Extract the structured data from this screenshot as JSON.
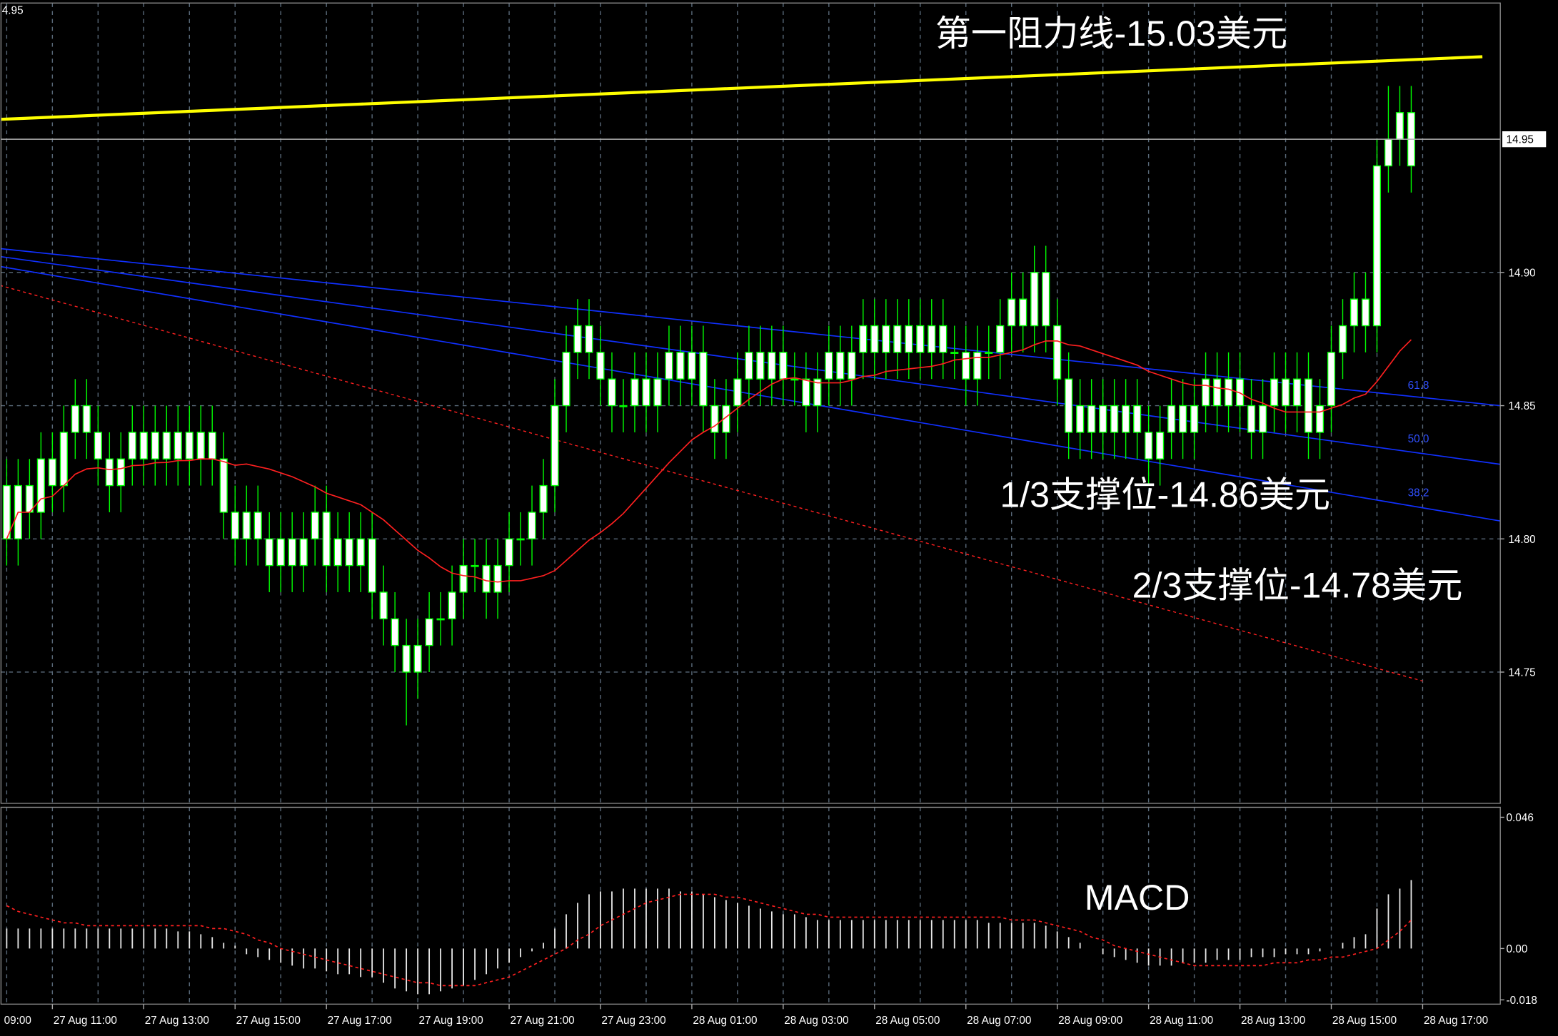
{
  "chart_data": {
    "type": "candlestick",
    "corner_label": "4.95",
    "annotations": [
      "第一阻力线-15.03美元",
      "1/3支撑位-14.86美元",
      "2/3支撑位-14.78美元"
    ],
    "fib_labels": [
      "61.8",
      "50.0",
      "38.2"
    ],
    "price_label": {
      "value": 14.95,
      "label": "14.95"
    },
    "body_color": "#ffffff",
    "wick_color": "#00ff00",
    "grid": true,
    "xlim": [
      -0.5,
      130.8
    ],
    "xticks": [
      {
        "value": -4,
        "label": "09:00"
      },
      {
        "value": 4,
        "label": "27 Aug 11:00"
      },
      {
        "value": 12,
        "label": "27 Aug 13:00"
      },
      {
        "value": 20,
        "label": "27 Aug 15:00"
      },
      {
        "value": 28,
        "label": "27 Aug 17:00"
      },
      {
        "value": 36,
        "label": "27 Aug 19:00"
      },
      {
        "value": 44,
        "label": "27 Aug 21:00"
      },
      {
        "value": 52,
        "label": "27 Aug 23:00"
      },
      {
        "value": 60,
        "label": "28 Aug 01:00"
      },
      {
        "value": 68,
        "label": "28 Aug 03:00"
      },
      {
        "value": 76,
        "label": "28 Aug 05:00"
      },
      {
        "value": 84,
        "label": "28 Aug 07:00"
      },
      {
        "value": 92,
        "label": "28 Aug 09:00"
      },
      {
        "value": 100,
        "label": "28 Aug 11:00"
      },
      {
        "value": 108,
        "label": "28 Aug 13:00"
      },
      {
        "value": 116,
        "label": "28 Aug 15:00"
      },
      {
        "value": 124,
        "label": "28 Aug 17:00"
      }
    ],
    "ylim": [
      14.7,
      15.0
    ],
    "yticks": [
      {
        "value": 14.9,
        "label": "14.90"
      },
      14.85,
      {
        "value": 14.8,
        "label": "14.80"
      },
      14.75
    ],
    "open": [
      14.82,
      14.8,
      14.82,
      14.81,
      14.83,
      14.82,
      14.84,
      14.85,
      14.84,
      14.83,
      14.82,
      14.83,
      14.84,
      14.83,
      14.84,
      14.83,
      14.84,
      14.83,
      14.84,
      14.83,
      14.81,
      14.8,
      14.81,
      14.8,
      14.79,
      14.8,
      14.79,
      14.8,
      14.81,
      14.79,
      14.8,
      14.79,
      14.8,
      14.78,
      14.77,
      14.76,
      14.75,
      14.76,
      14.77,
      14.77,
      14.78,
      14.79,
      14.79,
      14.78,
      14.79,
      14.8,
      14.8,
      14.81,
      14.82,
      14.85,
      14.87,
      14.88,
      14.87,
      14.86,
      14.85,
      14.85,
      14.86,
      14.85,
      14.86,
      14.87,
      14.86,
      14.87,
      14.85,
      14.84,
      14.85,
      14.86,
      14.87,
      14.86,
      14.87,
      14.86,
      14.86,
      14.85,
      14.86,
      14.87,
      14.86,
      14.87,
      14.88,
      14.87,
      14.88,
      14.87,
      14.88,
      14.87,
      14.88,
      14.87,
      14.87,
      14.86,
      14.87,
      14.87,
      14.88,
      14.89,
      14.88,
      14.9,
      14.88,
      14.86,
      14.84,
      14.85,
      14.84,
      14.85,
      14.84,
      14.85,
      14.84,
      14.83,
      14.84,
      14.85,
      14.84,
      14.85,
      14.86,
      14.85,
      14.86,
      14.85,
      14.84,
      14.85,
      14.86,
      14.85,
      14.86,
      14.84,
      14.85,
      14.87,
      14.88,
      14.89,
      14.88,
      14.94,
      14.95,
      14.96
    ],
    "high": [
      14.83,
      14.83,
      14.83,
      14.84,
      14.84,
      14.85,
      14.86,
      14.86,
      14.85,
      14.84,
      14.84,
      14.85,
      14.85,
      14.85,
      14.85,
      14.85,
      14.85,
      14.85,
      14.85,
      14.84,
      14.82,
      14.82,
      14.82,
      14.81,
      14.81,
      14.81,
      14.81,
      14.82,
      14.82,
      14.81,
      14.81,
      14.81,
      14.81,
      14.79,
      14.78,
      14.77,
      14.77,
      14.78,
      14.78,
      14.79,
      14.8,
      14.8,
      14.8,
      14.8,
      14.81,
      14.81,
      14.82,
      14.83,
      14.86,
      14.88,
      14.89,
      14.89,
      14.88,
      14.87,
      14.86,
      14.87,
      14.87,
      14.87,
      14.88,
      14.88,
      14.88,
      14.88,
      14.86,
      14.86,
      14.87,
      14.88,
      14.88,
      14.88,
      14.88,
      14.87,
      14.87,
      14.87,
      14.88,
      14.88,
      14.88,
      14.89,
      14.89,
      14.89,
      14.89,
      14.89,
      14.89,
      14.89,
      14.89,
      14.88,
      14.88,
      14.88,
      14.88,
      14.89,
      14.9,
      14.9,
      14.91,
      14.91,
      14.89,
      14.87,
      14.86,
      14.86,
      14.86,
      14.86,
      14.86,
      14.86,
      14.85,
      14.85,
      14.86,
      14.86,
      14.86,
      14.87,
      14.87,
      14.87,
      14.87,
      14.86,
      14.86,
      14.87,
      14.87,
      14.87,
      14.87,
      14.86,
      14.88,
      14.89,
      14.9,
      14.9,
      14.95,
      14.97,
      14.97,
      14.97
    ],
    "low": [
      14.79,
      14.79,
      14.8,
      14.8,
      14.81,
      14.81,
      14.83,
      14.83,
      14.82,
      14.81,
      14.81,
      14.82,
      14.82,
      14.82,
      14.82,
      14.82,
      14.82,
      14.82,
      14.82,
      14.8,
      14.79,
      14.79,
      14.79,
      14.78,
      14.78,
      14.78,
      14.78,
      14.79,
      14.78,
      14.78,
      14.78,
      14.78,
      14.77,
      14.76,
      14.75,
      14.73,
      14.74,
      14.75,
      14.76,
      14.76,
      14.77,
      14.78,
      14.77,
      14.77,
      14.78,
      14.79,
      14.79,
      14.8,
      14.81,
      14.84,
      14.86,
      14.86,
      14.85,
      14.84,
      14.84,
      14.84,
      14.84,
      14.84,
      14.85,
      14.85,
      14.85,
      14.84,
      14.83,
      14.83,
      14.84,
      14.85,
      14.85,
      14.85,
      14.85,
      14.85,
      14.84,
      14.84,
      14.85,
      14.85,
      14.85,
      14.86,
      14.86,
      14.86,
      14.86,
      14.86,
      14.86,
      14.86,
      14.86,
      14.86,
      14.85,
      14.85,
      14.86,
      14.86,
      14.87,
      14.87,
      14.87,
      14.87,
      14.85,
      14.83,
      14.83,
      14.83,
      14.83,
      14.83,
      14.83,
      14.83,
      14.82,
      14.82,
      14.83,
      14.83,
      14.83,
      14.84,
      14.84,
      14.84,
      14.84,
      14.83,
      14.83,
      14.84,
      14.84,
      14.84,
      14.83,
      14.83,
      14.84,
      14.86,
      14.87,
      14.87,
      14.87,
      14.93,
      14.94,
      14.93
    ],
    "close": [
      14.8,
      14.82,
      14.81,
      14.83,
      14.82,
      14.84,
      14.85,
      14.84,
      14.83,
      14.82,
      14.83,
      14.84,
      14.83,
      14.84,
      14.83,
      14.84,
      14.83,
      14.84,
      14.83,
      14.81,
      14.8,
      14.81,
      14.8,
      14.79,
      14.8,
      14.79,
      14.8,
      14.81,
      14.79,
      14.8,
      14.79,
      14.8,
      14.78,
      14.77,
      14.76,
      14.75,
      14.76,
      14.77,
      14.77,
      14.78,
      14.79,
      14.79,
      14.78,
      14.79,
      14.8,
      14.8,
      14.81,
      14.82,
      14.85,
      14.87,
      14.88,
      14.87,
      14.86,
      14.85,
      14.85,
      14.86,
      14.85,
      14.86,
      14.87,
      14.86,
      14.87,
      14.85,
      14.84,
      14.85,
      14.86,
      14.87,
      14.86,
      14.87,
      14.86,
      14.86,
      14.85,
      14.86,
      14.87,
      14.86,
      14.87,
      14.88,
      14.87,
      14.88,
      14.87,
      14.88,
      14.87,
      14.88,
      14.87,
      14.87,
      14.86,
      14.87,
      14.87,
      14.88,
      14.89,
      14.88,
      14.9,
      14.88,
      14.86,
      14.84,
      14.85,
      14.84,
      14.85,
      14.84,
      14.85,
      14.84,
      14.83,
      14.84,
      14.85,
      14.84,
      14.85,
      14.86,
      14.85,
      14.86,
      14.85,
      14.84,
      14.85,
      14.86,
      14.85,
      14.86,
      14.84,
      14.85,
      14.87,
      14.88,
      14.89,
      14.88,
      14.94,
      14.95,
      14.96,
      14.94
    ],
    "macd": {
      "title": "MACD",
      "ylim": [
        -0.0195,
        0.0495
      ],
      "yticks": [
        0.046,
        {
          "value": 0,
          "label": "0.00"
        },
        -0.018
      ],
      "values": [
        0.007,
        0.007,
        0.007,
        0.007,
        0.007,
        0.007,
        0.007,
        0.007,
        0.007,
        0.007,
        0.007,
        0.007,
        0.007,
        0.007,
        0.007,
        0.006,
        0.006,
        0.005,
        0.004,
        0.002,
        0.001,
        -0.002,
        -0.003,
        -0.004,
        -0.005,
        -0.006,
        -0.007,
        -0.007,
        -0.008,
        -0.009,
        -0.009,
        -0.01,
        -0.01,
        -0.012,
        -0.014,
        -0.015,
        -0.016,
        -0.016,
        -0.015,
        -0.014,
        -0.013,
        -0.011,
        -0.009,
        -0.007,
        -0.005,
        -0.003,
        -0.001,
        0.002,
        0.007,
        0.012,
        0.016,
        0.019,
        0.02,
        0.02,
        0.021,
        0.021,
        0.021,
        0.021,
        0.021,
        0.02,
        0.02,
        0.019,
        0.018,
        0.017,
        0.016,
        0.015,
        0.014,
        0.013,
        0.012,
        0.012,
        0.011,
        0.01,
        0.01,
        0.01,
        0.01,
        0.01,
        0.01,
        0.01,
        0.01,
        0.01,
        0.01,
        0.01,
        0.01,
        0.01,
        0.01,
        0.01,
        0.009,
        0.009,
        0.009,
        0.009,
        0.009,
        0.008,
        0.006,
        0.004,
        0.002,
        0.0,
        -0.002,
        -0.003,
        -0.004,
        -0.005,
        -0.006,
        -0.006,
        -0.006,
        -0.005,
        -0.005,
        -0.005,
        -0.004,
        -0.004,
        -0.004,
        -0.003,
        -0.003,
        -0.003,
        -0.002,
        -0.002,
        -0.002,
        -0.001,
        0.0,
        0.002,
        0.004,
        0.005,
        0.014,
        0.019,
        0.021,
        0.024
      ],
      "signal": [
        0.015,
        0.013,
        0.012,
        0.011,
        0.01,
        0.009,
        0.009,
        0.008,
        0.008,
        0.008,
        0.008,
        0.008,
        0.008,
        0.008,
        0.008,
        0.008,
        0.008,
        0.008,
        0.007,
        0.007,
        0.006,
        0.005,
        0.003,
        0.002,
        0.0,
        -0.001,
        -0.002,
        -0.003,
        -0.004,
        -0.005,
        -0.006,
        -0.007,
        -0.008,
        -0.009,
        -0.01,
        -0.011,
        -0.012,
        -0.012,
        -0.013,
        -0.013,
        -0.013,
        -0.013,
        -0.012,
        -0.011,
        -0.01,
        -0.008,
        -0.006,
        -0.004,
        -0.002,
        0.0,
        0.003,
        0.005,
        0.008,
        0.01,
        0.012,
        0.014,
        0.016,
        0.017,
        0.018,
        0.019,
        0.019,
        0.019,
        0.019,
        0.018,
        0.018,
        0.017,
        0.016,
        0.015,
        0.014,
        0.013,
        0.012,
        0.012,
        0.011,
        0.011,
        0.011,
        0.011,
        0.011,
        0.011,
        0.011,
        0.011,
        0.011,
        0.011,
        0.011,
        0.011,
        0.011,
        0.011,
        0.011,
        0.011,
        0.01,
        0.01,
        0.01,
        0.009,
        0.008,
        0.007,
        0.006,
        0.004,
        0.003,
        0.001,
        0.0,
        -0.001,
        -0.002,
        -0.003,
        -0.004,
        -0.005,
        -0.006,
        -0.006,
        -0.006,
        -0.006,
        -0.006,
        -0.006,
        -0.006,
        -0.005,
        -0.005,
        -0.005,
        -0.004,
        -0.004,
        -0.003,
        -0.003,
        -0.002,
        -0.001,
        0.0,
        0.003,
        0.006,
        0.01
      ]
    }
  }
}
